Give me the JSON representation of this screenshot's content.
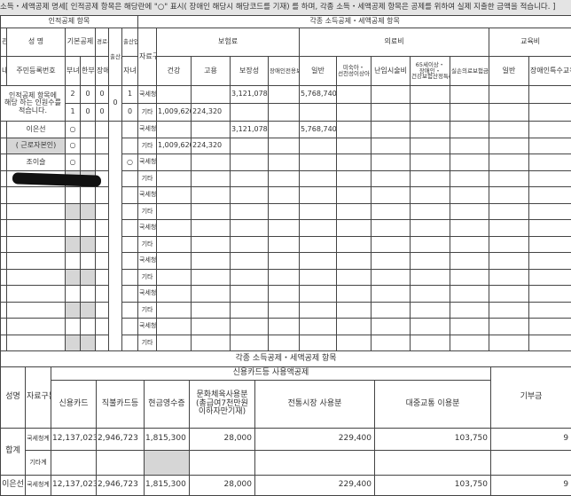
{
  "banner": "소득・세액공제 명세[ 인적공제 항목은 해당란에 \"○\" 표시( 장애인 해당시 해당코드를 기재) 를 하며, 각종 소득・세액공제 항목은 공제를 위하여 실제 지출한 금액을 적습니다. ]",
  "top": {
    "section_personal": "인적공제 항목",
    "section_deductions": "각종 소득공제・세액공제 항목",
    "h_relation": "관계코드",
    "h_name": "성 명",
    "h_basic": "기본공제",
    "h_elder": "경로우대",
    "h_birth": "출산세액공제",
    "h_adopt": "출산입양",
    "h_source": "자료구분",
    "h_insurance": "보험료",
    "h_medical": "의료비",
    "h_education": "교육비",
    "h_foreign": "내외국인",
    "h_rrn": "주민등록번호",
    "h_woman": "부녀자",
    "h_single": "한부모",
    "h_disabled": "장애인",
    "h_child": "자녀",
    "h_health": "건강",
    "h_employ": "고용",
    "h_guarantee": "보장성",
    "h_dis_guarantee": "장애인전용보장성",
    "h_med_general": "일반",
    "h_premature": "미숙아・선천성이상아",
    "h_infertility": "난임시술비",
    "h_over65": "65세이상・장애인・건강보험산정특례자",
    "h_indemnity": "실손의료보험금",
    "h_edu_general": "일반",
    "h_edu_special": "장애인특수교육",
    "summary_label": "인적공제 항목에 해당 하는 인원수를 적습니다.",
    "summary": [
      {
        "woman": "2",
        "single": "0",
        "disabled": "0",
        "birth": "0",
        "child": "1",
        "source": "국세청",
        "health": "",
        "employ": "",
        "guarantee": "3,121,078",
        "med_general": "5,768,740"
      },
      {
        "woman": "1",
        "single": "0",
        "disabled": "0",
        "child": "0",
        "source": "기타",
        "health": "1,009,620",
        "employ": "224,320",
        "guarantee": "",
        "med_general": ""
      }
    ],
    "people": [
      {
        "name": "이은선",
        "basic": "○",
        "child": "",
        "source": "국세청",
        "health": "",
        "employ": "",
        "guarantee": "3,121,078",
        "med_general": "5,768,740"
      },
      {
        "name": "( 근로자본인)",
        "basic": "○",
        "child": "",
        "source": "기타",
        "health": "1,009,620",
        "employ": "224,320",
        "guarantee": "",
        "med_general": ""
      },
      {
        "name": "조이슬",
        "basic": "○",
        "child": "○",
        "source": "국세청"
      },
      {
        "name": "",
        "source": "기타"
      },
      {
        "name": "",
        "source": "국세청"
      },
      {
        "name": "",
        "source": "기타"
      },
      {
        "name": "",
        "source": "국세청"
      },
      {
        "name": "",
        "source": "기타"
      },
      {
        "name": "",
        "source": "국세청"
      },
      {
        "name": "",
        "source": "기타"
      },
      {
        "name": "",
        "source": "국세청"
      },
      {
        "name": "",
        "source": "기타"
      },
      {
        "name": "",
        "source": "국세청"
      },
      {
        "name": "",
        "source": "기타"
      }
    ]
  },
  "bottom": {
    "title": "각종 소득공제・세액공제 항목",
    "h_name": "성명",
    "h_source": "자료구분",
    "h_card_group": "신용카드등 사용액공제",
    "h_credit": "신용카드",
    "h_debit": "직불카드등",
    "h_cash": "현금영수증",
    "h_culture": "문화체육사용분 (총급여7천만원 이하자만기재)",
    "h_market": "전통시장 사용분",
    "h_transit": "대중교통 이용분",
    "h_donation": "기부금",
    "rows": [
      {
        "name": "합계",
        "source": "국세청계",
        "credit": "12,137,023",
        "debit": "2,946,723",
        "cash": "1,815,300",
        "culture": "28,000",
        "market": "229,400",
        "transit": "103,750",
        "donation": "9"
      },
      {
        "source": "기타계",
        "credit": "",
        "debit": "",
        "cash": "",
        "culture": "",
        "market": "",
        "transit": "",
        "donation": ""
      },
      {
        "name": "이은선",
        "source": "국세청계",
        "credit": "12,137,023",
        "debit": "2,946,723",
        "cash": "1,815,300",
        "culture": "28,000",
        "market": "229,400",
        "transit": "103,750",
        "donation": "9"
      }
    ]
  }
}
